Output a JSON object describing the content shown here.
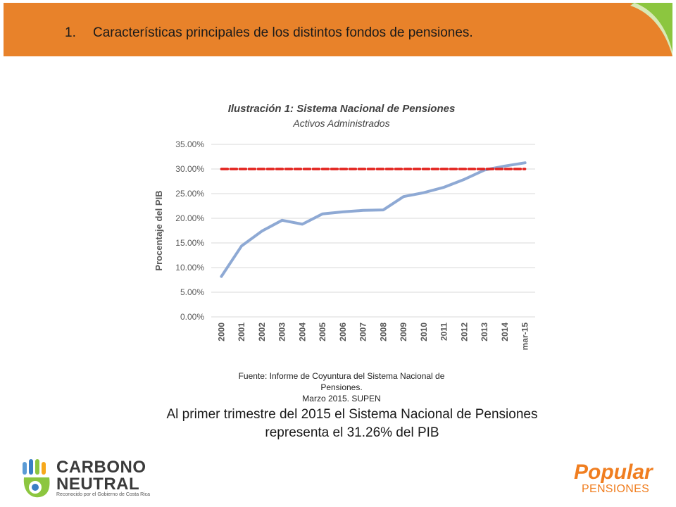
{
  "header": {
    "number": "1.",
    "title": "Características principales de los distintos fondos de pensiones."
  },
  "chart_data": {
    "type": "line",
    "title": "Ilustración 1: Sistema Nacional de Pensiones",
    "subtitle": "Activos Administrados",
    "xlabel": "",
    "ylabel": "Procentaje del PIB",
    "categories": [
      "2000",
      "2001",
      "2002",
      "2003",
      "2004",
      "2005",
      "2006",
      "2007",
      "2008",
      "2009",
      "2010",
      "2011",
      "2012",
      "2013",
      "2014",
      "mar-15"
    ],
    "series": [
      {
        "values": [
          8.2,
          14.4,
          17.4,
          19.6,
          18.8,
          20.9,
          21.3,
          21.6,
          21.7,
          24.4,
          25.2,
          26.3,
          27.9,
          29.8,
          30.6,
          31.26
        ],
        "color": "#8ea9d4"
      },
      {
        "values": [
          30,
          30,
          30,
          30,
          30,
          30,
          30,
          30,
          30,
          30,
          30,
          30,
          30,
          30,
          30,
          30
        ],
        "color": "#e3201b",
        "dashed": true
      }
    ],
    "yticks": [
      "0.00%",
      "5.00%",
      "10.00%",
      "15.00%",
      "20.00%",
      "25.00%",
      "30.00%",
      "35.00%"
    ],
    "ylim": [
      0,
      35
    ],
    "grid": true
  },
  "source": {
    "line1": "Fuente: Informe de Coyuntura del Sistema Nacional de Pensiones.",
    "line2": "Marzo 2015.  SUPEN"
  },
  "caption": {
    "line1": "Al primer trimestre del 2015 el Sistema Nacional de Pensiones",
    "line2": "representa el 31.26% del PIB"
  },
  "logos": {
    "left_line1": "CARBONO",
    "left_line2": "NEUTRAL",
    "left_line3": "Reconocido por el Gobierno de Costa Rica",
    "right_line1": "Popular",
    "right_line2": "PENSIONES"
  }
}
